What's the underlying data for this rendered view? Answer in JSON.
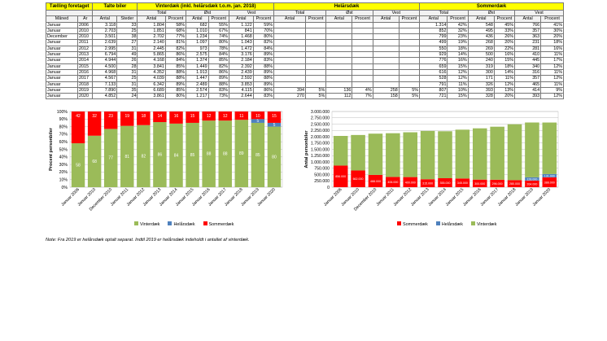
{
  "table": {
    "groups": {
      "taelling": "Tælling foretaget",
      "talte": "Talte biler",
      "vinter": "Vinterdæk (inkl. helårsdæk t.o.m. jan. 2018)",
      "helaar": "Helårsdæk",
      "sommer": "Sommerdæk"
    },
    "regions": {
      "total": "Total",
      "ost": "Øst",
      "vest": "Vest"
    },
    "sub": {
      "maned": "Måned",
      "ar": "År",
      "antal": "Antal",
      "steder": "Steder",
      "procent": "Procent"
    },
    "rows": [
      {
        "m": "Januar",
        "y": "2006",
        "antal": "3.118",
        "steder": "33",
        "v_tot_a": "1.804",
        "v_tot_p": "58%",
        "v_ost_a": "682",
        "v_ost_p": "55%",
        "v_vest_a": "1.122",
        "v_vest_p": "59%",
        "h_tot_a": "",
        "h_tot_p": "",
        "h_ost_a": "",
        "h_ost_p": "",
        "h_vest_a": "",
        "h_vest_p": "",
        "s_tot_a": "1.314",
        "s_tot_p": "42%",
        "s_ost_a": "548",
        "s_ost_p": "45%",
        "s_vest_a": "766",
        "s_vest_p": "41%"
      },
      {
        "m": "Januar",
        "y": "2010",
        "antal": "2.703",
        "steder": "25",
        "v_tot_a": "1.851",
        "v_tot_p": "68%",
        "v_ost_a": "1.010",
        "v_ost_p": "67%",
        "v_vest_a": "841",
        "v_vest_p": "70%",
        "h_tot_a": "",
        "h_tot_p": "",
        "h_ost_a": "",
        "h_ost_p": "",
        "h_vest_a": "",
        "h_vest_p": "",
        "s_tot_a": "852",
        "s_tot_p": "32%",
        "s_ost_a": "495",
        "s_ost_p": "33%",
        "s_vest_a": "357",
        "s_vest_p": "30%"
      },
      {
        "m": "December",
        "y": "2010",
        "antal": "3.501",
        "steder": "38",
        "v_tot_a": "2.702",
        "v_tot_p": "77%",
        "v_ost_a": "1.234",
        "v_ost_p": "74%",
        "v_vest_a": "1.468",
        "v_vest_p": "80%",
        "h_tot_a": "",
        "h_tot_p": "",
        "h_ost_a": "",
        "h_ost_p": "",
        "h_vest_a": "",
        "h_vest_p": "",
        "s_tot_a": "799",
        "s_tot_p": "23%",
        "s_ost_a": "436",
        "s_ost_p": "26%",
        "s_vest_a": "363",
        "s_vest_p": "20%"
      },
      {
        "m": "Januar",
        "y": "2011",
        "antal": "2.639",
        "steder": "27",
        "v_tot_a": "2.140",
        "v_tot_p": "81%",
        "v_ost_a": "1.097",
        "v_ost_p": "80%",
        "v_vest_a": "1.043",
        "v_vest_p": "82%",
        "h_tot_a": "",
        "h_tot_p": "",
        "h_ost_a": "",
        "h_ost_p": "",
        "h_vest_a": "",
        "h_vest_p": "",
        "s_tot_a": "499",
        "s_tot_p": "19%",
        "s_ost_a": "268",
        "s_ost_p": "20%",
        "s_vest_a": "231",
        "s_vest_p": "18%"
      },
      {
        "m": "Januar",
        "y": "2012",
        "antal": "2.995",
        "steder": "31",
        "v_tot_a": "2.445",
        "v_tot_p": "82%",
        "v_ost_a": "973",
        "v_ost_p": "78%",
        "v_vest_a": "1.472",
        "v_vest_p": "84%",
        "h_tot_a": "",
        "h_tot_p": "",
        "h_ost_a": "",
        "h_ost_p": "",
        "h_vest_a": "",
        "h_vest_p": "",
        "s_tot_a": "550",
        "s_tot_p": "18%",
        "s_ost_a": "269",
        "s_ost_p": "22%",
        "s_vest_a": "281",
        "s_vest_p": "16%"
      },
      {
        "m": "Januar",
        "y": "2013",
        "antal": "6.794",
        "steder": "49",
        "v_tot_a": "5.865",
        "v_tot_p": "86%",
        "v_ost_a": "2.575",
        "v_ost_p": "84%",
        "v_vest_a": "3.176",
        "v_vest_p": "89%",
        "h_tot_a": "",
        "h_tot_p": "",
        "h_ost_a": "",
        "h_ost_p": "",
        "h_vest_a": "",
        "h_vest_p": "",
        "s_tot_a": "929",
        "s_tot_p": "14%",
        "s_ost_a": "500",
        "s_ost_p": "16%",
        "s_vest_a": "410",
        "s_vest_p": "11%"
      },
      {
        "m": "Januar",
        "y": "2014",
        "antal": "4.944",
        "steder": "26",
        "v_tot_a": "4.168",
        "v_tot_p": "84%",
        "v_ost_a": "1.374",
        "v_ost_p": "85%",
        "v_vest_a": "2.184",
        "v_vest_p": "83%",
        "h_tot_a": "",
        "h_tot_p": "",
        "h_ost_a": "",
        "h_ost_p": "",
        "h_vest_a": "",
        "h_vest_p": "",
        "s_tot_a": "776",
        "s_tot_p": "16%",
        "s_ost_a": "240",
        "s_ost_p": "15%",
        "s_vest_a": "445",
        "s_vest_p": "17%"
      },
      {
        "m": "Januar",
        "y": "2015",
        "antal": "4.500",
        "steder": "28",
        "v_tot_a": "3.841",
        "v_tot_p": "85%",
        "v_ost_a": "1.449",
        "v_ost_p": "82%",
        "v_vest_a": "2.392",
        "v_vest_p": "88%",
        "h_tot_a": "",
        "h_tot_p": "",
        "h_ost_a": "",
        "h_ost_p": "",
        "h_vest_a": "",
        "h_vest_p": "",
        "s_tot_a": "659",
        "s_tot_p": "15%",
        "s_ost_a": "319",
        "s_ost_p": "18%",
        "s_vest_a": "340",
        "s_vest_p": "12%"
      },
      {
        "m": "Januar",
        "y": "2016",
        "antal": "4.968",
        "steder": "31",
        "v_tot_a": "4.352",
        "v_tot_p": "88%",
        "v_ost_a": "1.913",
        "v_ost_p": "86%",
        "v_vest_a": "2.439",
        "v_vest_p": "89%",
        "h_tot_a": "",
        "h_tot_p": "",
        "h_ost_a": "",
        "h_ost_p": "",
        "h_vest_a": "",
        "h_vest_p": "",
        "s_tot_a": "616",
        "s_tot_p": "12%",
        "s_ost_a": "300",
        "s_ost_p": "14%",
        "s_vest_a": "316",
        "s_vest_p": "11%"
      },
      {
        "m": "Januar",
        "y": "2017",
        "antal": "4.567",
        "steder": "25",
        "v_tot_a": "4.039",
        "v_tot_p": "88%",
        "v_ost_a": "1.447",
        "v_ost_p": "89%",
        "v_vest_a": "2.592",
        "v_vest_p": "88%",
        "h_tot_a": "",
        "h_tot_p": "",
        "h_ost_a": "",
        "h_ost_p": "",
        "h_vest_a": "",
        "h_vest_p": "",
        "s_tot_a": "528",
        "s_tot_p": "12%",
        "s_ost_a": "171",
        "s_ost_p": "11%",
        "s_vest_a": "357",
        "s_vest_p": "12%"
      },
      {
        "m": "Januar",
        "y": "2018",
        "antal": "7.133",
        "steder": "31",
        "v_tot_a": "6.342",
        "v_tot_p": "89%",
        "v_ost_a": "2.489",
        "v_ost_p": "88%",
        "v_vest_a": "3.853",
        "v_vest_p": "89%",
        "h_tot_a": "",
        "h_tot_p": "",
        "h_ost_a": "",
        "h_ost_p": "",
        "h_vest_a": "",
        "h_vest_p": "",
        "s_tot_a": "791",
        "s_tot_p": "11%",
        "s_ost_a": "326",
        "s_ost_p": "12%",
        "s_vest_a": "465",
        "s_vest_p": "11%"
      },
      {
        "m": "Januar",
        "y": "2019",
        "antal": "7.890",
        "steder": "35",
        "v_tot_a": "6.689",
        "v_tot_p": "85%",
        "v_ost_a": "2.574",
        "v_ost_p": "83%",
        "v_vest_a": "4.115",
        "v_vest_p": "86%",
        "h_tot_a": "394",
        "h_tot_p": "5%",
        "h_ost_a": "136",
        "h_ost_p": "4%",
        "h_vest_a": "258",
        "h_vest_p": "5%",
        "s_tot_a": "807",
        "s_tot_p": "10%",
        "s_ost_a": "393",
        "s_ost_p": "13%",
        "s_vest_a": "414",
        "s_vest_p": "9%"
      },
      {
        "m": "Januar",
        "y": "2020",
        "antal": "4.852",
        "steder": "24",
        "v_tot_a": "3.861",
        "v_tot_p": "80%",
        "v_ost_a": "1.217",
        "v_ost_p": "73%",
        "v_vest_a": "2.644",
        "v_vest_p": "83%",
        "h_tot_a": "270",
        "h_tot_p": "5%",
        "h_ost_a": "112",
        "h_ost_p": "7%",
        "h_vest_a": "158",
        "h_vest_p": "5%",
        "s_tot_a": "721",
        "s_tot_p": "15%",
        "s_ost_a": "328",
        "s_ost_p": "20%",
        "s_vest_a": "393",
        "s_vest_p": "12%"
      }
    ]
  },
  "colors": {
    "vinter": "#9bbb59",
    "helaar": "#4f81bd",
    "sommer": "#ff0000",
    "header": "#ffff00"
  },
  "note": "Note: Fra 2019 er helårsdæk optalt separat. Indtil 2019 er helårsdæk indeholdt i antallet af vinterdæk.",
  "chart_data": [
    {
      "type": "bar",
      "stacked": true,
      "ylabel": "Procent personbiler",
      "ylim": [
        0,
        100
      ],
      "yticks": [
        "0%",
        "10%",
        "20%",
        "30%",
        "40%",
        "50%",
        "60%",
        "70%",
        "80%",
        "90%",
        "100%"
      ],
      "grid": true,
      "legend": "bottom",
      "categories": [
        "Januar 2006",
        "Januar 2010",
        "December 2010",
        "Januar 2011",
        "Januar 2012",
        "Januar 2013",
        "Januar 2014",
        "Januar 2015",
        "Januar 2016",
        "Januar 2017",
        "Januar 2018",
        "Januar 2019",
        "Januar 2020"
      ],
      "series": [
        {
          "name": "Vinterdæk",
          "color": "#9bbb59",
          "values": [
            58,
            68,
            77,
            81,
            82,
            86,
            84,
            85,
            88,
            88,
            89,
            85,
            80
          ]
        },
        {
          "name": "Helårsdæk",
          "color": "#4f81bd",
          "values": [
            0,
            0,
            0,
            0,
            0,
            0,
            0,
            0,
            0,
            0,
            0,
            5,
            5
          ]
        },
        {
          "name": "Sommerdæk",
          "color": "#ff0000",
          "values": [
            42,
            32,
            23,
            19,
            18,
            14,
            16,
            15,
            12,
            12,
            11,
            10,
            15
          ]
        }
      ],
      "data_labels": {
        "Vinterdæk": [
          "58",
          "68",
          "77",
          "81",
          "82",
          "86",
          "84",
          "85",
          "88",
          "88",
          "89",
          "85",
          "80"
        ],
        "Helårsdæk": [
          "",
          "",
          "",
          "",
          "",
          "",
          "",
          "",
          "",
          "",
          "",
          "5",
          "5"
        ],
        "Sommerdæk": [
          "42",
          "32",
          "23",
          "19",
          "18",
          "14",
          "16",
          "15",
          "12",
          "12",
          "11",
          "10",
          "15"
        ]
      }
    },
    {
      "type": "bar",
      "stacked": true,
      "ylabel": "Antal personbiler",
      "ylim": [
        0,
        3000000
      ],
      "yticks": [
        "0",
        "250.000",
        "500.000",
        "750.000",
        "1.000.000",
        "1.250.000",
        "1.500.000",
        "1.750.000",
        "2.000.000",
        "2.250.000",
        "2.500.000",
        "2.750.000",
        "3.000.000"
      ],
      "grid": true,
      "legend": "bottom",
      "categories": [
        "Januar 2006",
        "Januar 2010",
        "December 2010",
        "Januar 2011",
        "Januar 2012",
        "Januar 2013",
        "Januar 2014",
        "Januar 2015",
        "Januar 2016",
        "Januar 2017",
        "Januar 2018",
        "Januar 2019",
        "Januar 2020"
      ],
      "series": [
        {
          "name": "Sommerdæk",
          "color": "#ff0000",
          "values": [
            856000,
            662000,
            488000,
            406000,
            400000,
            315000,
            355000,
            345000,
            300000,
            296000,
            280000,
            264000,
            388000
          ]
        },
        {
          "name": "Helårsdæk",
          "color": "#4f81bd",
          "values": [
            0,
            0,
            0,
            0,
            0,
            0,
            0,
            0,
            0,
            0,
            0,
            128000,
            131000
          ]
        },
        {
          "name": "Vinterdæk",
          "color": "#9bbb59",
          "values": [
            1176000,
            1407000,
            1634000,
            1733000,
            1776000,
            1914000,
            1862000,
            1935000,
            2033000,
            2101000,
            2214000,
            2172000,
            2044000
          ]
        }
      ],
      "data_labels": {
        "Sommerdæk": [
          "856.000",
          "662.000",
          "488.000",
          "406.000",
          "400.000",
          "315.000",
          "355.000",
          "345.000",
          "300.000",
          "296.000",
          "280.000",
          "264.000",
          "388.000"
        ],
        "Helårsdæk": [
          "",
          "",
          "",
          "",
          "",
          "",
          "",
          "",
          "",
          "",
          "",
          "128.000",
          "131.000"
        ]
      }
    }
  ]
}
